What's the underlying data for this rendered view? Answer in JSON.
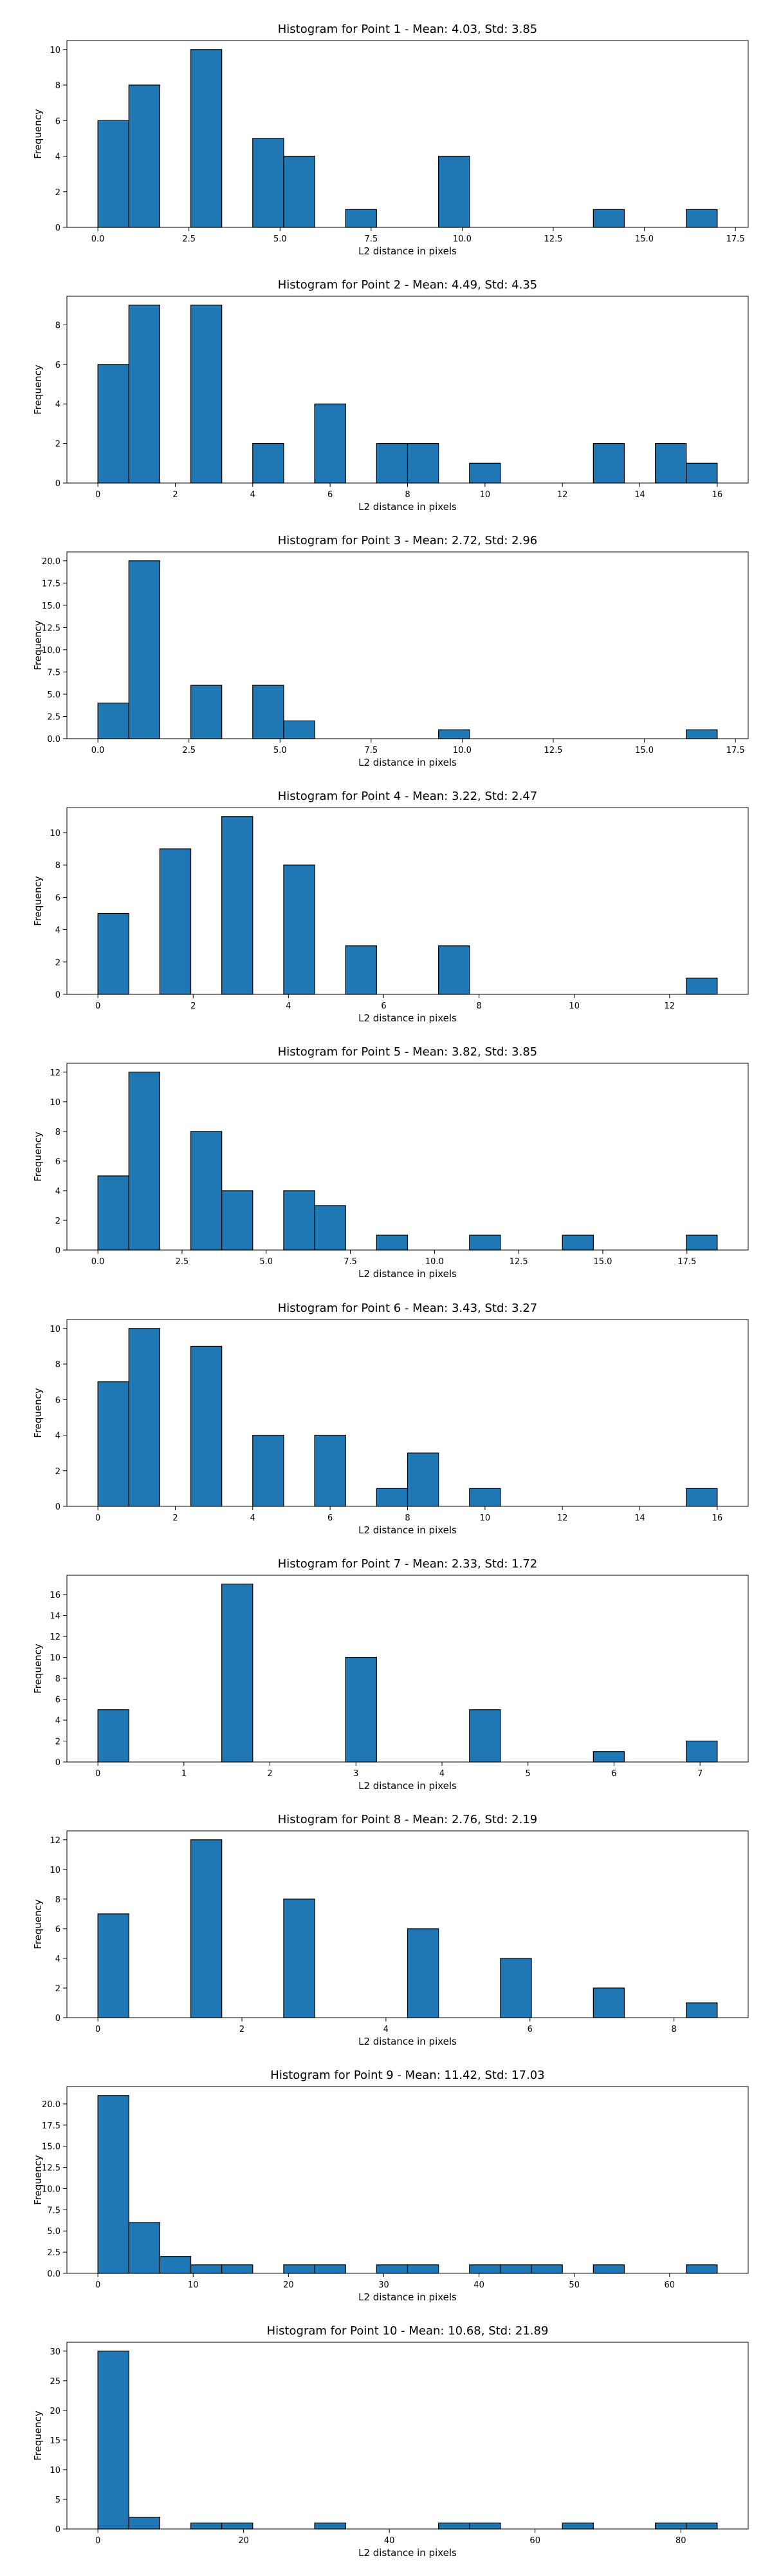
{
  "figure": {
    "background": "#ffffff",
    "bar_color": "#1f77b4",
    "bar_edge": "#000000"
  },
  "chart_data": [
    {
      "type": "bar",
      "title": "Histogram for Point 1 - Mean: 4.03, Std: 3.85",
      "xlabel": "L2 distance in pixels",
      "ylabel": "Frequency",
      "xlim": [
        -0.85,
        17.85
      ],
      "ylim": [
        0,
        10.5
      ],
      "xticks": [
        0.0,
        2.5,
        5.0,
        7.5,
        10.0,
        12.5,
        15.0,
        17.5
      ],
      "xtick_labels": [
        "0.0",
        "2.5",
        "5.0",
        "7.5",
        "10.0",
        "12.5",
        "15.0",
        "17.5"
      ],
      "yticks": [
        0,
        2,
        4,
        6,
        8,
        10
      ],
      "ytick_labels": [
        "0",
        "2",
        "4",
        "6",
        "8",
        "10"
      ],
      "bin_start": 0.0,
      "bin_width": 0.85,
      "bin_count": 20,
      "bins": [
        {
          "x0": 0.0,
          "x1": 0.85,
          "count": 6
        },
        {
          "x0": 0.85,
          "x1": 1.7,
          "count": 8
        },
        {
          "x0": 2.55,
          "x1": 3.4,
          "count": 10
        },
        {
          "x0": 4.25,
          "x1": 5.1,
          "count": 5
        },
        {
          "x0": 5.1,
          "x1": 5.95,
          "count": 4
        },
        {
          "x0": 6.8,
          "x1": 7.65,
          "count": 1
        },
        {
          "x0": 9.35,
          "x1": 10.2,
          "count": 4
        },
        {
          "x0": 13.6,
          "x1": 14.45,
          "count": 1
        },
        {
          "x0": 16.15,
          "x1": 17.0,
          "count": 1
        }
      ]
    },
    {
      "type": "bar",
      "title": "Histogram for Point 2 - Mean: 4.49, Std: 4.35",
      "xlabel": "L2 distance in pixels",
      "ylabel": "Frequency",
      "xlim": [
        -0.8,
        16.8
      ],
      "ylim": [
        0,
        9.45
      ],
      "xticks": [
        0,
        2,
        4,
        6,
        8,
        10,
        12,
        14,
        16
      ],
      "xtick_labels": [
        "0",
        "2",
        "4",
        "6",
        "8",
        "10",
        "12",
        "14",
        "16"
      ],
      "yticks": [
        0,
        2,
        4,
        6,
        8
      ],
      "ytick_labels": [
        "0",
        "2",
        "4",
        "6",
        "8"
      ],
      "bin_start": 0.0,
      "bin_width": 0.8,
      "bin_count": 20,
      "bins": [
        {
          "x0": 0.0,
          "x1": 0.8,
          "count": 6
        },
        {
          "x0": 0.8,
          "x1": 1.6,
          "count": 9
        },
        {
          "x0": 2.4,
          "x1": 3.2,
          "count": 9
        },
        {
          "x0": 4.0,
          "x1": 4.8,
          "count": 2
        },
        {
          "x0": 5.6,
          "x1": 6.4,
          "count": 4
        },
        {
          "x0": 7.2,
          "x1": 8.0,
          "count": 2
        },
        {
          "x0": 8.0,
          "x1": 8.8,
          "count": 2
        },
        {
          "x0": 9.6,
          "x1": 10.4,
          "count": 1
        },
        {
          "x0": 12.8,
          "x1": 13.6,
          "count": 2
        },
        {
          "x0": 14.4,
          "x1": 15.2,
          "count": 2
        },
        {
          "x0": 15.2,
          "x1": 16.0,
          "count": 1
        }
      ]
    },
    {
      "type": "bar",
      "title": "Histogram for Point 3 - Mean: 2.72, Std: 2.96",
      "xlabel": "L2 distance in pixels",
      "ylabel": "Frequency",
      "xlim": [
        -0.85,
        17.85
      ],
      "ylim": [
        0,
        21
      ],
      "xticks": [
        0.0,
        2.5,
        5.0,
        7.5,
        10.0,
        12.5,
        15.0,
        17.5
      ],
      "xtick_labels": [
        "0.0",
        "2.5",
        "5.0",
        "7.5",
        "10.0",
        "12.5",
        "15.0",
        "17.5"
      ],
      "yticks": [
        0.0,
        2.5,
        5.0,
        7.5,
        10.0,
        12.5,
        15.0,
        17.5,
        20.0
      ],
      "ytick_labels": [
        "0.0",
        "2.5",
        "5.0",
        "7.5",
        "10.0",
        "12.5",
        "15.0",
        "17.5",
        "20.0"
      ],
      "bin_start": 0.0,
      "bin_width": 0.85,
      "bin_count": 20,
      "bins": [
        {
          "x0": 0.0,
          "x1": 0.85,
          "count": 4
        },
        {
          "x0": 0.85,
          "x1": 1.7,
          "count": 20
        },
        {
          "x0": 2.55,
          "x1": 3.4,
          "count": 6
        },
        {
          "x0": 4.25,
          "x1": 5.1,
          "count": 6
        },
        {
          "x0": 5.1,
          "x1": 5.95,
          "count": 2
        },
        {
          "x0": 9.35,
          "x1": 10.2,
          "count": 1
        },
        {
          "x0": 16.15,
          "x1": 17.0,
          "count": 1
        }
      ]
    },
    {
      "type": "bar",
      "title": "Histogram for Point 4 - Mean: 3.22, Std: 2.47",
      "xlabel": "L2 distance in pixels",
      "ylabel": "Frequency",
      "xlim": [
        -0.65,
        13.65
      ],
      "ylim": [
        0,
        11.55
      ],
      "xticks": [
        0,
        2,
        4,
        6,
        8,
        10,
        12
      ],
      "xtick_labels": [
        "0",
        "2",
        "4",
        "6",
        "8",
        "10",
        "12"
      ],
      "yticks": [
        0,
        2,
        4,
        6,
        8,
        10
      ],
      "ytick_labels": [
        "0",
        "2",
        "4",
        "6",
        "8",
        "10"
      ],
      "bin_start": 0.0,
      "bin_width": 0.65,
      "bin_count": 20,
      "bins": [
        {
          "x0": 0.0,
          "x1": 0.65,
          "count": 5
        },
        {
          "x0": 1.3,
          "x1": 1.95,
          "count": 9
        },
        {
          "x0": 2.6,
          "x1": 3.25,
          "count": 11
        },
        {
          "x0": 3.9,
          "x1": 4.55,
          "count": 8
        },
        {
          "x0": 5.2,
          "x1": 5.85,
          "count": 3
        },
        {
          "x0": 7.15,
          "x1": 7.8,
          "count": 3
        },
        {
          "x0": 12.35,
          "x1": 13.0,
          "count": 1
        }
      ]
    },
    {
      "type": "bar",
      "title": "Histogram for Point 5 - Mean: 3.82, Std: 3.85",
      "xlabel": "L2 distance in pixels",
      "ylabel": "Frequency",
      "xlim": [
        -0.92,
        19.32
      ],
      "ylim": [
        0,
        12.6
      ],
      "xticks": [
        0.0,
        2.5,
        5.0,
        7.5,
        10.0,
        12.5,
        15.0,
        17.5
      ],
      "xtick_labels": [
        "0.0",
        "2.5",
        "5.0",
        "7.5",
        "10.0",
        "12.5",
        "15.0",
        "17.5"
      ],
      "yticks": [
        0,
        2,
        4,
        6,
        8,
        10,
        12
      ],
      "ytick_labels": [
        "0",
        "2",
        "4",
        "6",
        "8",
        "10",
        "12"
      ],
      "bin_start": 0.0,
      "bin_width": 0.92,
      "bin_count": 20,
      "bins": [
        {
          "x0": 0.0,
          "x1": 0.92,
          "count": 5
        },
        {
          "x0": 0.92,
          "x1": 1.84,
          "count": 12
        },
        {
          "x0": 2.76,
          "x1": 3.68,
          "count": 8
        },
        {
          "x0": 3.68,
          "x1": 4.6,
          "count": 4
        },
        {
          "x0": 5.52,
          "x1": 6.44,
          "count": 4
        },
        {
          "x0": 6.44,
          "x1": 7.36,
          "count": 3
        },
        {
          "x0": 8.28,
          "x1": 9.2,
          "count": 1
        },
        {
          "x0": 11.04,
          "x1": 11.96,
          "count": 1
        },
        {
          "x0": 13.8,
          "x1": 14.72,
          "count": 1
        },
        {
          "x0": 17.48,
          "x1": 18.4,
          "count": 1
        }
      ]
    },
    {
      "type": "bar",
      "title": "Histogram for Point 6 - Mean: 3.43, Std: 3.27",
      "xlabel": "L2 distance in pixels",
      "ylabel": "Frequency",
      "xlim": [
        -0.8,
        16.8
      ],
      "ylim": [
        0,
        10.5
      ],
      "xticks": [
        0,
        2,
        4,
        6,
        8,
        10,
        12,
        14,
        16
      ],
      "xtick_labels": [
        "0",
        "2",
        "4",
        "6",
        "8",
        "10",
        "12",
        "14",
        "16"
      ],
      "yticks": [
        0,
        2,
        4,
        6,
        8,
        10
      ],
      "ytick_labels": [
        "0",
        "2",
        "4",
        "6",
        "8",
        "10"
      ],
      "bin_start": 0.0,
      "bin_width": 0.8,
      "bin_count": 20,
      "bins": [
        {
          "x0": 0.0,
          "x1": 0.8,
          "count": 7
        },
        {
          "x0": 0.8,
          "x1": 1.6,
          "count": 10
        },
        {
          "x0": 2.4,
          "x1": 3.2,
          "count": 9
        },
        {
          "x0": 4.0,
          "x1": 4.8,
          "count": 4
        },
        {
          "x0": 5.6,
          "x1": 6.4,
          "count": 4
        },
        {
          "x0": 7.2,
          "x1": 8.0,
          "count": 1
        },
        {
          "x0": 8.0,
          "x1": 8.8,
          "count": 3
        },
        {
          "x0": 9.6,
          "x1": 10.4,
          "count": 1
        },
        {
          "x0": 15.2,
          "x1": 16.0,
          "count": 1
        }
      ]
    },
    {
      "type": "bar",
      "title": "Histogram for Point 7 - Mean: 2.33, Std: 1.72",
      "xlabel": "L2 distance in pixels",
      "ylabel": "Frequency",
      "xlim": [
        -0.36,
        7.56
      ],
      "ylim": [
        0,
        17.85
      ],
      "xticks": [
        0,
        1,
        2,
        3,
        4,
        5,
        6,
        7
      ],
      "xtick_labels": [
        "0",
        "1",
        "2",
        "3",
        "4",
        "5",
        "6",
        "7"
      ],
      "yticks": [
        0,
        2,
        4,
        6,
        8,
        10,
        12,
        14,
        16
      ],
      "ytick_labels": [
        "0",
        "2",
        "4",
        "6",
        "8",
        "10",
        "12",
        "14",
        "16"
      ],
      "bin_start": 0.0,
      "bin_width": 0.36,
      "bin_count": 20,
      "bins": [
        {
          "x0": 0.0,
          "x1": 0.36,
          "count": 5
        },
        {
          "x0": 1.44,
          "x1": 1.8,
          "count": 17
        },
        {
          "x0": 2.88,
          "x1": 3.24,
          "count": 10
        },
        {
          "x0": 4.32,
          "x1": 4.68,
          "count": 5
        },
        {
          "x0": 5.76,
          "x1": 6.12,
          "count": 1
        },
        {
          "x0": 6.84,
          "x1": 7.2,
          "count": 2
        }
      ]
    },
    {
      "type": "bar",
      "title": "Histogram for Point 8 - Mean: 2.76, Std: 2.19",
      "xlabel": "L2 distance in pixels",
      "ylabel": "Frequency",
      "xlim": [
        -0.43,
        9.03
      ],
      "ylim": [
        0,
        12.6
      ],
      "xticks": [
        0,
        2,
        4,
        6,
        8
      ],
      "xtick_labels": [
        "0",
        "2",
        "4",
        "6",
        "8"
      ],
      "yticks": [
        0,
        2,
        4,
        6,
        8,
        10,
        12
      ],
      "ytick_labels": [
        "0",
        "2",
        "4",
        "6",
        "8",
        "10",
        "12"
      ],
      "bin_start": 0.0,
      "bin_width": 0.43,
      "bin_count": 20,
      "bins": [
        {
          "x0": 0.0,
          "x1": 0.43,
          "count": 7
        },
        {
          "x0": 1.29,
          "x1": 1.72,
          "count": 12
        },
        {
          "x0": 2.58,
          "x1": 3.01,
          "count": 8
        },
        {
          "x0": 4.3,
          "x1": 4.73,
          "count": 6
        },
        {
          "x0": 5.59,
          "x1": 6.02,
          "count": 4
        },
        {
          "x0": 6.88,
          "x1": 7.31,
          "count": 2
        },
        {
          "x0": 8.17,
          "x1": 8.6,
          "count": 1
        }
      ]
    },
    {
      "type": "bar",
      "title": "Histogram for Point 9 - Mean: 11.42, Std: 17.03",
      "xlabel": "L2 distance in pixels",
      "ylabel": "Frequency",
      "xlim": [
        -3.25,
        68.25
      ],
      "ylim": [
        0,
        22.05
      ],
      "xticks": [
        0,
        10,
        20,
        30,
        40,
        50,
        60
      ],
      "xtick_labels": [
        "0",
        "10",
        "20",
        "30",
        "40",
        "50",
        "60"
      ],
      "yticks": [
        0.0,
        2.5,
        5.0,
        7.5,
        10.0,
        12.5,
        15.0,
        17.5,
        20.0
      ],
      "ytick_labels": [
        "0.0",
        "2.5",
        "5.0",
        "7.5",
        "10.0",
        "12.5",
        "15.0",
        "17.5",
        "20.0"
      ],
      "bin_start": 0.0,
      "bin_width": 3.25,
      "bin_count": 20,
      "bins": [
        {
          "x0": 0.0,
          "x1": 3.25,
          "count": 21
        },
        {
          "x0": 3.25,
          "x1": 6.5,
          "count": 6
        },
        {
          "x0": 6.5,
          "x1": 9.75,
          "count": 2
        },
        {
          "x0": 9.75,
          "x1": 13.0,
          "count": 1
        },
        {
          "x0": 13.0,
          "x1": 16.25,
          "count": 1
        },
        {
          "x0": 19.5,
          "x1": 22.75,
          "count": 1
        },
        {
          "x0": 22.75,
          "x1": 26.0,
          "count": 1
        },
        {
          "x0": 29.25,
          "x1": 32.5,
          "count": 1
        },
        {
          "x0": 32.5,
          "x1": 35.75,
          "count": 1
        },
        {
          "x0": 39.0,
          "x1": 42.25,
          "count": 1
        },
        {
          "x0": 42.25,
          "x1": 45.5,
          "count": 1
        },
        {
          "x0": 45.5,
          "x1": 48.75,
          "count": 1
        },
        {
          "x0": 52.0,
          "x1": 55.25,
          "count": 1
        },
        {
          "x0": 61.75,
          "x1": 65.0,
          "count": 1
        }
      ]
    },
    {
      "type": "bar",
      "title": "Histogram for Point 10 - Mean: 10.68, Std: 21.89",
      "xlabel": "L2 distance in pixels",
      "ylabel": "Frequency",
      "xlim": [
        -4.25,
        89.25
      ],
      "ylim": [
        0,
        31.5
      ],
      "xticks": [
        0,
        20,
        40,
        60,
        80
      ],
      "xtick_labels": [
        "0",
        "20",
        "40",
        "60",
        "80"
      ],
      "yticks": [
        0,
        5,
        10,
        15,
        20,
        25,
        30
      ],
      "ytick_labels": [
        "0",
        "5",
        "10",
        "15",
        "20",
        "25",
        "30"
      ],
      "bin_start": 0.0,
      "bin_width": 4.25,
      "bin_count": 20,
      "bins": [
        {
          "x0": 0.0,
          "x1": 4.25,
          "count": 30
        },
        {
          "x0": 4.25,
          "x1": 8.5,
          "count": 2
        },
        {
          "x0": 12.75,
          "x1": 17.0,
          "count": 1
        },
        {
          "x0": 17.0,
          "x1": 21.25,
          "count": 1
        },
        {
          "x0": 29.75,
          "x1": 34.0,
          "count": 1
        },
        {
          "x0": 46.75,
          "x1": 51.0,
          "count": 1
        },
        {
          "x0": 51.0,
          "x1": 55.25,
          "count": 1
        },
        {
          "x0": 63.75,
          "x1": 68.0,
          "count": 1
        },
        {
          "x0": 76.5,
          "x1": 80.75,
          "count": 1
        },
        {
          "x0": 80.75,
          "x1": 85.0,
          "count": 1
        }
      ]
    }
  ]
}
